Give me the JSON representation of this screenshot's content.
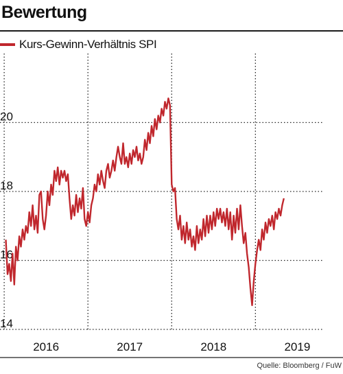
{
  "header": {
    "title": "Bewertung"
  },
  "legend": {
    "label": "Kurs-Gewinn-Verhältnis SPI",
    "color": "#c0272d"
  },
  "source": "Quelle: Bloomberg / FuW",
  "chart_data": {
    "type": "line",
    "title": "Bewertung",
    "xlabel": "",
    "ylabel": "",
    "ylim": [
      14,
      22
    ],
    "xlim": [
      2015.45,
      2019.3
    ],
    "y_ticks": [
      14,
      16,
      18,
      20
    ],
    "x_ticks": [
      {
        "label": "2016",
        "value": 2016.0
      },
      {
        "label": "2017",
        "value": 2017.0
      },
      {
        "label": "2018",
        "value": 2018.0
      },
      {
        "label": "2019",
        "value": 2019.0
      }
    ],
    "grid": {
      "vertical": [
        2015.5,
        2016.5,
        2017.5,
        2018.5
      ],
      "horizontal": [
        14,
        16,
        18,
        20
      ],
      "style": "dotted"
    },
    "series": [
      {
        "name": "Kurs-Gewinn-Verhältnis SPI",
        "color": "#c0272d",
        "points": [
          [
            2015.52,
            16.6
          ],
          [
            2015.54,
            15.6
          ],
          [
            2015.56,
            15.9
          ],
          [
            2015.58,
            15.4
          ],
          [
            2015.6,
            16.2
          ],
          [
            2015.62,
            15.3
          ],
          [
            2015.64,
            16.4
          ],
          [
            2015.66,
            16.0
          ],
          [
            2015.68,
            16.7
          ],
          [
            2015.7,
            16.4
          ],
          [
            2015.72,
            16.9
          ],
          [
            2015.74,
            16.6
          ],
          [
            2015.76,
            17.0
          ],
          [
            2015.78,
            16.8
          ],
          [
            2015.8,
            17.4
          ],
          [
            2015.82,
            17.0
          ],
          [
            2015.84,
            17.6
          ],
          [
            2015.86,
            16.9
          ],
          [
            2015.88,
            17.3
          ],
          [
            2015.9,
            16.8
          ],
          [
            2015.92,
            17.9
          ],
          [
            2015.94,
            18.0
          ],
          [
            2015.96,
            17.2
          ],
          [
            2015.98,
            16.9
          ],
          [
            2016.0,
            17.3
          ],
          [
            2016.02,
            18.0
          ],
          [
            2016.04,
            17.6
          ],
          [
            2016.06,
            18.2
          ],
          [
            2016.08,
            17.9
          ],
          [
            2016.1,
            18.6
          ],
          [
            2016.12,
            18.3
          ],
          [
            2016.14,
            18.7
          ],
          [
            2016.16,
            18.2
          ],
          [
            2016.18,
            18.6
          ],
          [
            2016.2,
            18.4
          ],
          [
            2016.22,
            18.6
          ],
          [
            2016.24,
            18.3
          ],
          [
            2016.26,
            18.5
          ],
          [
            2016.28,
            17.8
          ],
          [
            2016.3,
            17.2
          ],
          [
            2016.32,
            17.6
          ],
          [
            2016.34,
            17.3
          ],
          [
            2016.36,
            17.9
          ],
          [
            2016.38,
            17.4
          ],
          [
            2016.4,
            17.8
          ],
          [
            2016.42,
            17.5
          ],
          [
            2016.44,
            18.1
          ],
          [
            2016.46,
            17.2
          ],
          [
            2016.48,
            17.0
          ],
          [
            2016.5,
            17.4
          ],
          [
            2016.52,
            17.1
          ],
          [
            2016.54,
            17.6
          ],
          [
            2016.56,
            17.8
          ],
          [
            2016.58,
            18.2
          ],
          [
            2016.6,
            18.0
          ],
          [
            2016.62,
            18.5
          ],
          [
            2016.64,
            18.2
          ],
          [
            2016.66,
            18.6
          ],
          [
            2016.68,
            18.3
          ],
          [
            2016.7,
            18.1
          ],
          [
            2016.72,
            18.6
          ],
          [
            2016.74,
            18.8
          ],
          [
            2016.76,
            18.4
          ],
          [
            2016.78,
            18.6
          ],
          [
            2016.8,
            18.9
          ],
          [
            2016.82,
            18.6
          ],
          [
            2016.84,
            19.0
          ],
          [
            2016.86,
            19.3
          ],
          [
            2016.88,
            19.0
          ],
          [
            2016.9,
            18.8
          ],
          [
            2016.92,
            19.4
          ],
          [
            2016.94,
            18.8
          ],
          [
            2016.96,
            19.0
          ],
          [
            2016.98,
            18.7
          ],
          [
            2017.0,
            19.1
          ],
          [
            2017.02,
            18.8
          ],
          [
            2017.04,
            19.2
          ],
          [
            2017.06,
            19.0
          ],
          [
            2017.08,
            19.3
          ],
          [
            2017.1,
            18.9
          ],
          [
            2017.12,
            19.1
          ],
          [
            2017.14,
            18.8
          ],
          [
            2017.16,
            19.0
          ],
          [
            2017.18,
            19.5
          ],
          [
            2017.2,
            19.2
          ],
          [
            2017.22,
            19.7
          ],
          [
            2017.24,
            19.4
          ],
          [
            2017.26,
            19.9
          ],
          [
            2017.28,
            19.6
          ],
          [
            2017.3,
            20.1
          ],
          [
            2017.32,
            19.8
          ],
          [
            2017.34,
            20.2
          ],
          [
            2017.36,
            20.0
          ],
          [
            2017.38,
            20.4
          ],
          [
            2017.4,
            20.2
          ],
          [
            2017.42,
            20.6
          ],
          [
            2017.44,
            20.4
          ],
          [
            2017.46,
            20.7
          ],
          [
            2017.48,
            20.5
          ],
          [
            2017.5,
            18.2
          ],
          [
            2017.52,
            18.0
          ],
          [
            2017.54,
            18.1
          ],
          [
            2017.56,
            17.2
          ],
          [
            2017.58,
            16.9
          ],
          [
            2017.6,
            17.3
          ],
          [
            2017.62,
            16.6
          ],
          [
            2017.64,
            17.0
          ],
          [
            2017.66,
            16.5
          ],
          [
            2017.68,
            17.1
          ],
          [
            2017.7,
            16.6
          ],
          [
            2017.72,
            16.9
          ],
          [
            2017.74,
            16.4
          ],
          [
            2017.76,
            16.7
          ],
          [
            2017.78,
            16.3
          ],
          [
            2017.8,
            17.0
          ],
          [
            2017.82,
            16.5
          ],
          [
            2017.84,
            16.9
          ],
          [
            2017.86,
            16.6
          ],
          [
            2017.88,
            17.2
          ],
          [
            2017.9,
            16.7
          ],
          [
            2017.92,
            17.3
          ],
          [
            2017.94,
            16.8
          ],
          [
            2017.96,
            17.3
          ],
          [
            2017.98,
            16.9
          ],
          [
            2018.0,
            17.4
          ],
          [
            2018.02,
            17.0
          ],
          [
            2018.04,
            17.5
          ],
          [
            2018.06,
            17.2
          ],
          [
            2018.08,
            17.5
          ],
          [
            2018.1,
            17.1
          ],
          [
            2018.12,
            17.4
          ],
          [
            2018.14,
            17.0
          ],
          [
            2018.16,
            17.5
          ],
          [
            2018.18,
            16.9
          ],
          [
            2018.2,
            17.4
          ],
          [
            2018.22,
            16.6
          ],
          [
            2018.24,
            17.3
          ],
          [
            2018.26,
            16.8
          ],
          [
            2018.28,
            17.5
          ],
          [
            2018.3,
            16.9
          ],
          [
            2018.32,
            17.6
          ],
          [
            2018.34,
            17.0
          ],
          [
            2018.36,
            16.5
          ],
          [
            2018.38,
            16.8
          ],
          [
            2018.4,
            16.2
          ],
          [
            2018.42,
            15.8
          ],
          [
            2018.44,
            15.2
          ],
          [
            2018.46,
            14.7
          ],
          [
            2018.48,
            15.4
          ],
          [
            2018.5,
            15.9
          ],
          [
            2018.52,
            16.3
          ],
          [
            2018.54,
            16.6
          ],
          [
            2018.56,
            16.3
          ],
          [
            2018.58,
            16.9
          ],
          [
            2018.6,
            16.6
          ],
          [
            2018.62,
            17.1
          ],
          [
            2018.64,
            16.8
          ],
          [
            2018.66,
            17.2
          ],
          [
            2018.68,
            17.0
          ],
          [
            2018.7,
            17.3
          ],
          [
            2018.72,
            16.9
          ],
          [
            2018.74,
            17.4
          ],
          [
            2018.76,
            17.2
          ],
          [
            2018.78,
            17.5
          ],
          [
            2018.8,
            17.3
          ],
          [
            2018.82,
            17.6
          ],
          [
            2018.84,
            17.8
          ]
        ]
      }
    ]
  }
}
